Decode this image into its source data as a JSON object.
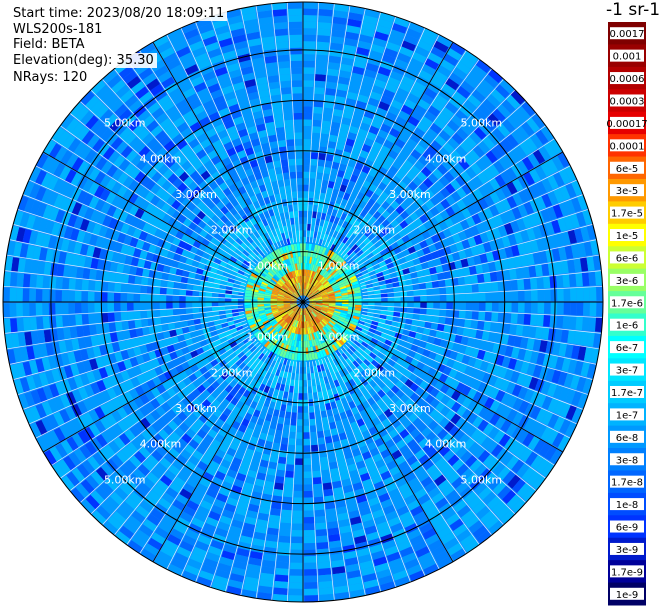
{
  "header": {
    "start_time": "Start time: 2023/08/20 18:09:11",
    "instrument": "WLS200s-181",
    "field": "Field: BETA",
    "elevation": "Elevation(deg): 35.30",
    "nrays": "NRays: 120"
  },
  "colorbar": {
    "unit_title": "-1 sr-1",
    "labels": [
      "0.0017",
      "0.001",
      "0.0006",
      "0.0003",
      "0.00017",
      "0.0001",
      "6e-5",
      "3e-5",
      "1.7e-5",
      "1e-5",
      "6e-6",
      "3e-6",
      "1.7e-6",
      "1e-6",
      "6e-7",
      "3e-7",
      "1.7e-7",
      "1e-7",
      "6e-8",
      "3e-8",
      "1.7e-8",
      "1e-8",
      "6e-9",
      "3e-9",
      "1.7e-9",
      "1e-9"
    ],
    "colors": [
      "#7f0000",
      "#990000",
      "#b30000",
      "#cc0000",
      "#e60000",
      "#ff3300",
      "#ff6600",
      "#ff9900",
      "#ffcc00",
      "#ffff00",
      "#ccff33",
      "#99ff66",
      "#66ff99",
      "#33ffcc",
      "#00ffff",
      "#00e6ff",
      "#00ccff",
      "#00b3ff",
      "#0099ff",
      "#0080ff",
      "#0066ff",
      "#004dff",
      "#0033ff",
      "#001acc",
      "#000099",
      "#000066"
    ]
  },
  "chart_data": {
    "type": "polar-ppi",
    "field": "BETA",
    "nrays": 120,
    "elevation_deg": 35.3,
    "range_rings": [
      {
        "r_km": 1.0,
        "label": "1.00km"
      },
      {
        "r_km": 2.0,
        "label": "2.00km"
      },
      {
        "r_km": 3.0,
        "label": "3.00km"
      },
      {
        "r_km": 4.0,
        "label": "4.00km"
      },
      {
        "r_km": 5.0,
        "label": "5.00km"
      }
    ],
    "max_range_km": 5.95,
    "azimuth_lines_deg": [
      0,
      30,
      60,
      90,
      120,
      150,
      180,
      210,
      240,
      270,
      300,
      330
    ],
    "colorscale": "log",
    "vmin": 1e-09,
    "vmax": 0.0017
  }
}
